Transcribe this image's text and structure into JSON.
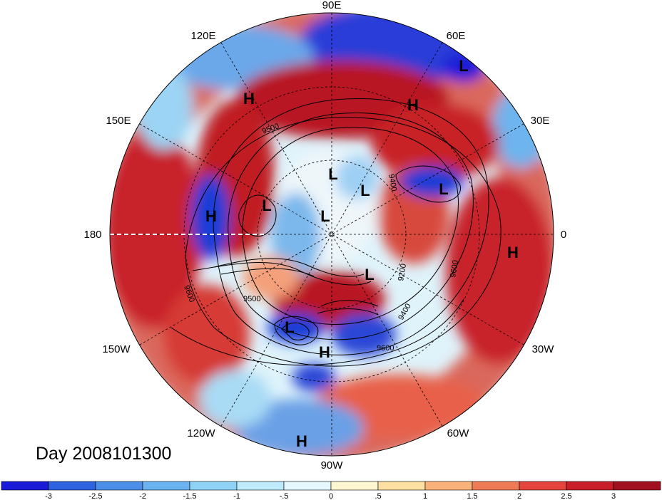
{
  "map": {
    "title": "Day 2008101300",
    "lon_labels": [
      {
        "key": "90E",
        "text": "90E"
      },
      {
        "key": "60E",
        "text": "60E"
      },
      {
        "key": "30E",
        "text": "30E"
      },
      {
        "key": "0",
        "text": "0"
      },
      {
        "key": "30W",
        "text": "30W"
      },
      {
        "key": "60W",
        "text": "60W"
      },
      {
        "key": "90W",
        "text": "90W"
      },
      {
        "key": "120W",
        "text": "120W"
      },
      {
        "key": "150W",
        "text": "150W"
      },
      {
        "key": "180",
        "text": "180"
      },
      {
        "key": "150E",
        "text": "150E"
      },
      {
        "key": "120E",
        "text": "120E"
      }
    ],
    "pressure_centers": [
      {
        "type": "H",
        "text": "H"
      },
      {
        "type": "H",
        "text": "H"
      },
      {
        "type": "L",
        "text": "L"
      },
      {
        "type": "H",
        "text": "H"
      },
      {
        "type": "L",
        "text": "L"
      },
      {
        "type": "L",
        "text": "L"
      },
      {
        "type": "L",
        "text": "L"
      },
      {
        "type": "L",
        "text": "L"
      },
      {
        "type": "H",
        "text": "H"
      },
      {
        "type": "L",
        "text": "L"
      },
      {
        "type": "H",
        "text": "H"
      },
      {
        "type": "L",
        "text": "L"
      },
      {
        "type": "L",
        "text": "L"
      },
      {
        "type": "H",
        "text": "H"
      },
      {
        "type": "L",
        "text": "L"
      }
    ],
    "contour_labels": [
      "9500",
      "9400",
      "9500",
      "9200",
      "9400",
      "9600",
      "9600",
      "9600"
    ],
    "colorbar": {
      "colors": [
        "#1a1ad8",
        "#2e62e0",
        "#4c8ee8",
        "#6ab2f0",
        "#8fd2f6",
        "#bdebfb",
        "#e4f8fd",
        "#fdf6d0",
        "#fde0a2",
        "#f8b27a",
        "#ef7a56",
        "#e4443c",
        "#c81e2a",
        "#a0101e"
      ],
      "ticks": [
        "-3",
        "-2.5",
        "-2",
        "-1.5",
        "-1",
        "-.5",
        "0",
        ".5",
        "1",
        "1.5",
        "2",
        "2.5",
        "3"
      ]
    }
  }
}
